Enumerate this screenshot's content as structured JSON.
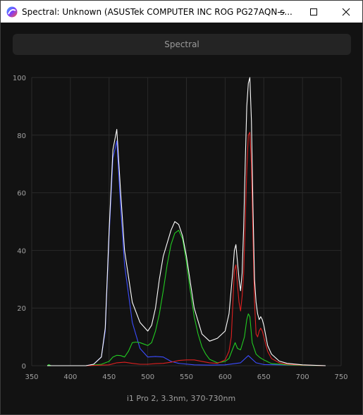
{
  "window": {
    "title": "Spectral: Unknown (ASUSTek COMPUTER INC ROG PG27AQN s...",
    "minimize_icon": "minimize-icon",
    "maximize_icon": "maximize-icon",
    "close_icon": "close-icon"
  },
  "toolbar": {
    "spectral_label": "Spectral"
  },
  "chart_data": {
    "type": "line",
    "xlabel": "i1 Pro 2, 3.3nm, 370-730nm",
    "ylabel": "",
    "xlim": [
      350,
      750
    ],
    "ylim": [
      0,
      100
    ],
    "xticks": [
      350,
      400,
      450,
      500,
      550,
      600,
      650,
      700,
      750
    ],
    "yticks": [
      0,
      20,
      40,
      60,
      80,
      100
    ],
    "grid": true,
    "series": [
      {
        "color": "#3b4cff",
        "x": [
          370,
          420,
          430,
          440,
          445,
          450,
          455,
          460,
          465,
          470,
          480,
          490,
          500,
          510,
          520,
          530,
          540,
          560,
          580,
          600,
          620,
          630,
          640,
          650,
          700,
          730
        ],
        "y": [
          0,
          0,
          0.5,
          3,
          12,
          45,
          72,
          78,
          55,
          35,
          15,
          6,
          3,
          3.2,
          3,
          1.5,
          0.8,
          0.3,
          0.2,
          0.3,
          1,
          3.5,
          1,
          0.4,
          0.1,
          0
        ]
      },
      {
        "color": "#22cc22",
        "x": [
          370,
          372,
          375,
          420,
          440,
          450,
          455,
          460,
          465,
          470,
          475,
          480,
          485,
          490,
          495,
          500,
          505,
          510,
          515,
          520,
          525,
          530,
          535,
          540,
          545,
          550,
          555,
          560,
          565,
          570,
          575,
          580,
          590,
          600,
          605,
          610,
          613,
          616,
          620,
          625,
          628,
          630,
          632,
          635,
          640,
          645,
          650,
          660,
          680,
          700,
          730
        ],
        "y": [
          0,
          0.4,
          0,
          0,
          0.5,
          1.5,
          3,
          3.6,
          3.5,
          3,
          5,
          8,
          8.2,
          8,
          7.5,
          7,
          8,
          12,
          18,
          26,
          35,
          42,
          46,
          47,
          44,
          36,
          26,
          17,
          11,
          6.5,
          4,
          2.2,
          1,
          1.5,
          2.5,
          6,
          8,
          6,
          5.5,
          10,
          16,
          18,
          17,
          8,
          4,
          2.8,
          2,
          0.7,
          0.3,
          0.1,
          0
        ]
      },
      {
        "color": "#e02020",
        "x": [
          370,
          420,
          450,
          460,
          470,
          480,
          490,
          500,
          510,
          520,
          530,
          540,
          550,
          560,
          570,
          580,
          590,
          600,
          605,
          608,
          610,
          612,
          614,
          616,
          618,
          620,
          622,
          624,
          626,
          628,
          630,
          632,
          634,
          636,
          638,
          640,
          642,
          644,
          646,
          648,
          650,
          655,
          660,
          670,
          680,
          700,
          730
        ],
        "y": [
          0,
          0,
          0.3,
          1,
          1.2,
          0.8,
          0.5,
          0.5,
          0.7,
          0.8,
          1.2,
          1.8,
          2,
          2,
          1.5,
          1,
          0.8,
          2,
          5,
          10,
          22,
          33,
          35,
          28,
          22,
          19,
          24,
          32,
          50,
          68,
          80,
          81,
          70,
          45,
          22,
          11,
          10,
          12,
          13,
          12,
          10,
          5,
          2.5,
          1,
          0.5,
          0.2,
          0
        ]
      },
      {
        "color": "#ffffff",
        "x": [
          370,
          420,
          430,
          440,
          445,
          450,
          455,
          460,
          465,
          470,
          480,
          490,
          500,
          505,
          510,
          515,
          520,
          530,
          535,
          540,
          545,
          550,
          555,
          560,
          570,
          580,
          590,
          600,
          605,
          610,
          612,
          614,
          616,
          618,
          620,
          622,
          624,
          626,
          628,
          630,
          632,
          634,
          636,
          638,
          640,
          642,
          644,
          646,
          648,
          650,
          655,
          660,
          670,
          680,
          700,
          730
        ],
        "y": [
          0,
          0,
          0.5,
          3,
          13,
          47,
          75,
          82,
          60,
          40,
          22,
          15,
          12,
          14,
          20,
          30,
          38,
          47,
          50,
          49,
          45,
          38,
          29,
          20,
          11,
          8.5,
          9.5,
          12,
          18,
          33,
          40,
          42,
          36,
          30,
          26,
          32,
          48,
          70,
          90,
          98,
          100,
          85,
          55,
          30,
          22,
          18,
          16,
          17,
          16,
          14,
          7,
          4,
          1.6,
          0.8,
          0.3,
          0
        ]
      }
    ]
  }
}
